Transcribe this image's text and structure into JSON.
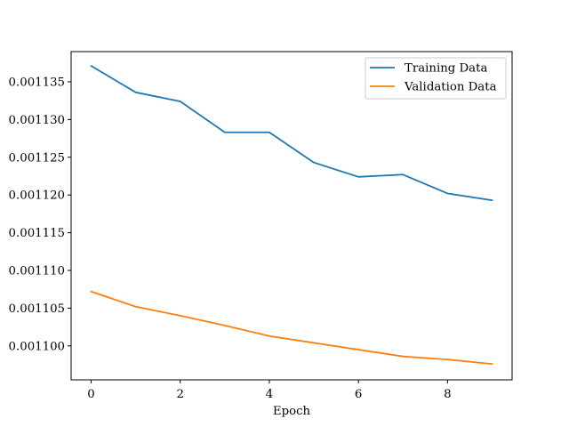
{
  "chart_data": {
    "type": "line",
    "title": "",
    "xlabel": "Epoch",
    "ylabel": "",
    "x": [
      0,
      1,
      2,
      3,
      4,
      5,
      6,
      7,
      8,
      9
    ],
    "xlim": [
      -0.45,
      9.45
    ],
    "ylim": [
      0.0010955,
      0.001139
    ],
    "xticks": [
      0,
      2,
      4,
      6,
      8
    ],
    "xtick_labels": [
      "0",
      "2",
      "4",
      "6",
      "8"
    ],
    "yticks": [
      0.0011,
      0.001105,
      0.00111,
      0.001115,
      0.00112,
      0.001125,
      0.00113,
      0.001135
    ],
    "ytick_labels": [
      "0.001100",
      "0.001105",
      "0.001110",
      "0.001115",
      "0.001120",
      "0.001125",
      "0.001130",
      "0.001135"
    ],
    "grid": false,
    "legend_position": "top-right",
    "series": [
      {
        "name": "Training Data",
        "color": "#1f77b4",
        "values": [
          0.0011371,
          0.0011336,
          0.0011324,
          0.0011283,
          0.0011283,
          0.0011243,
          0.0011224,
          0.0011227,
          0.0011202,
          0.0011193
        ]
      },
      {
        "name": "Validation Data",
        "color": "#ff7f0e",
        "values": [
          0.0011072,
          0.0011052,
          0.001104,
          0.0011027,
          0.0011013,
          0.0011004,
          0.0010995,
          0.0010986,
          0.0010982,
          0.0010976
        ]
      }
    ]
  }
}
